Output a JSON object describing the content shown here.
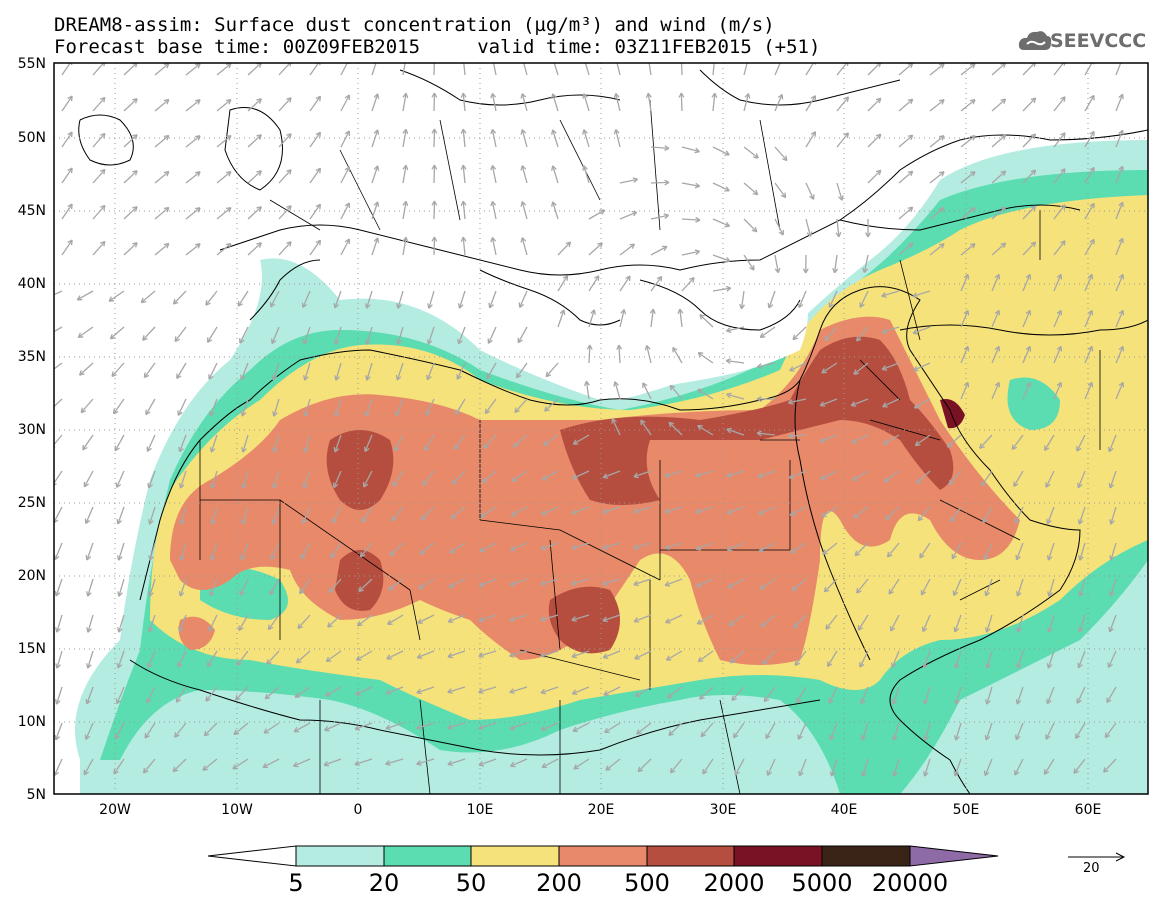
{
  "header": {
    "title_line1": "DREAM8-assim: Surface dust concentration (µg/m³) and wind (m/s)",
    "title_line2": "Forecast base time: 00Z09FEB2015     valid time: 03Z11FEB2015 (+51)",
    "logo_text": "SEEVCCC"
  },
  "map": {
    "lat_labels": [
      "55N",
      "50N",
      "45N",
      "40N",
      "35N",
      "30N",
      "25N",
      "20N",
      "15N",
      "10N",
      "5N"
    ],
    "lon_labels": [
      "20W",
      "10W",
      "0",
      "10E",
      "20E",
      "30E",
      "40E",
      "50E",
      "60E"
    ],
    "lat_range": [
      5,
      55
    ],
    "lon_range": [
      -25,
      65
    ]
  },
  "colorbar": {
    "labels": [
      "5",
      "20",
      "50",
      "200",
      "500",
      "2000",
      "5000",
      "20000"
    ],
    "colors": [
      "#ffffff",
      "#b4ece2",
      "#5bdcb1",
      "#f6e27a",
      "#e8896a",
      "#b54e3f",
      "#7a1226",
      "#3a2418",
      "#8e6aa6"
    ],
    "wind_reference": "20"
  }
}
